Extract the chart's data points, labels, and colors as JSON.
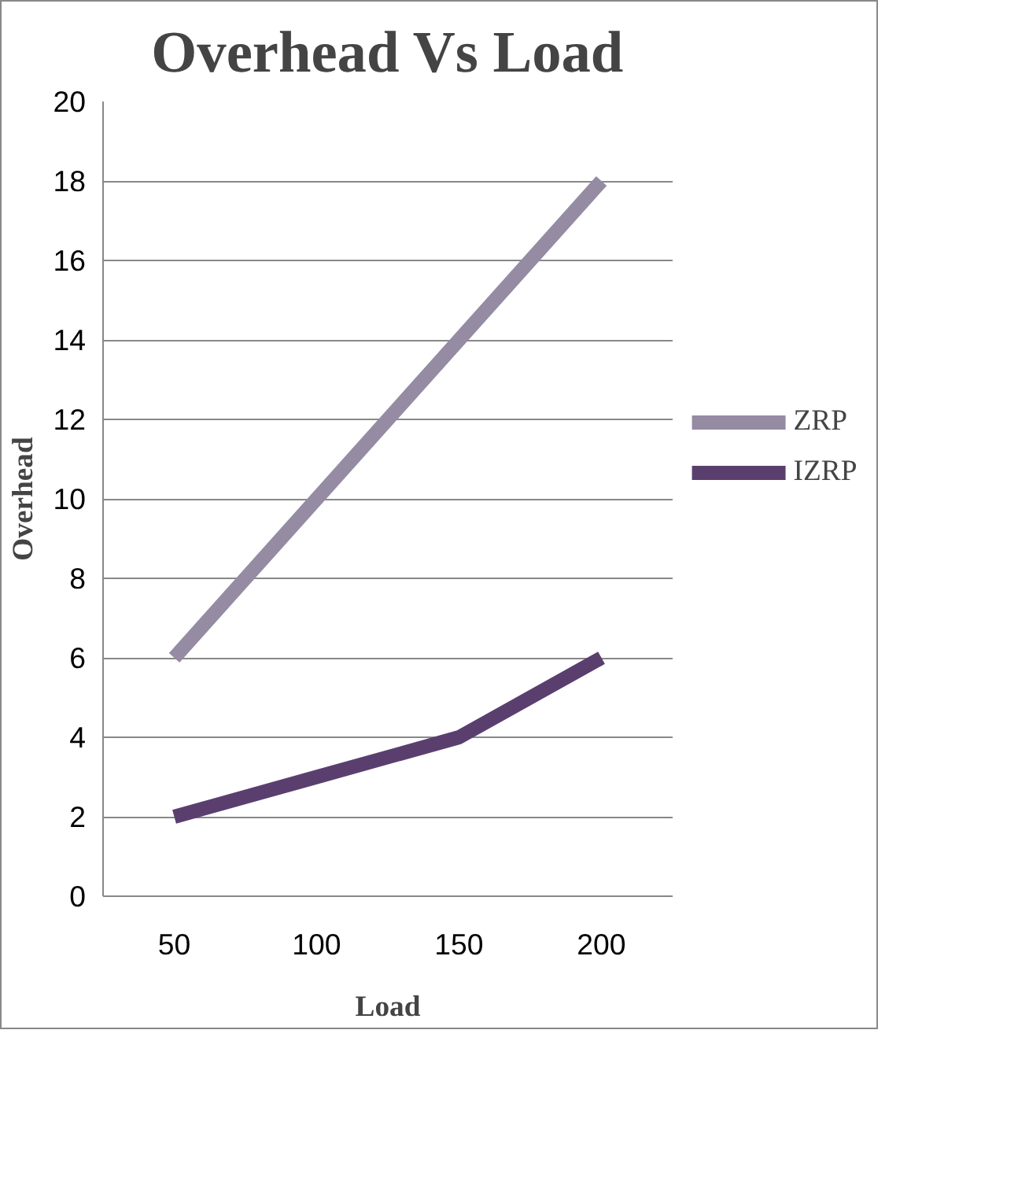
{
  "chart_data": {
    "type": "line",
    "title": "Overhead Vs Load",
    "xlabel": "Load",
    "ylabel": "Overhead",
    "categories": [
      "50",
      "100",
      "150",
      "200"
    ],
    "series": [
      {
        "name": "ZRP",
        "color": "#958ba3",
        "values": [
          6,
          10,
          14,
          18
        ]
      },
      {
        "name": "IZRP",
        "color": "#5a3f6e",
        "values": [
          2,
          3,
          4,
          6
        ]
      }
    ],
    "ylim": [
      0,
      20
    ],
    "yticks": [
      0,
      2,
      4,
      6,
      8,
      10,
      12,
      14,
      16,
      18,
      20
    ],
    "grid": "y",
    "legend": "right",
    "marker": "none",
    "line_style": "solid"
  }
}
